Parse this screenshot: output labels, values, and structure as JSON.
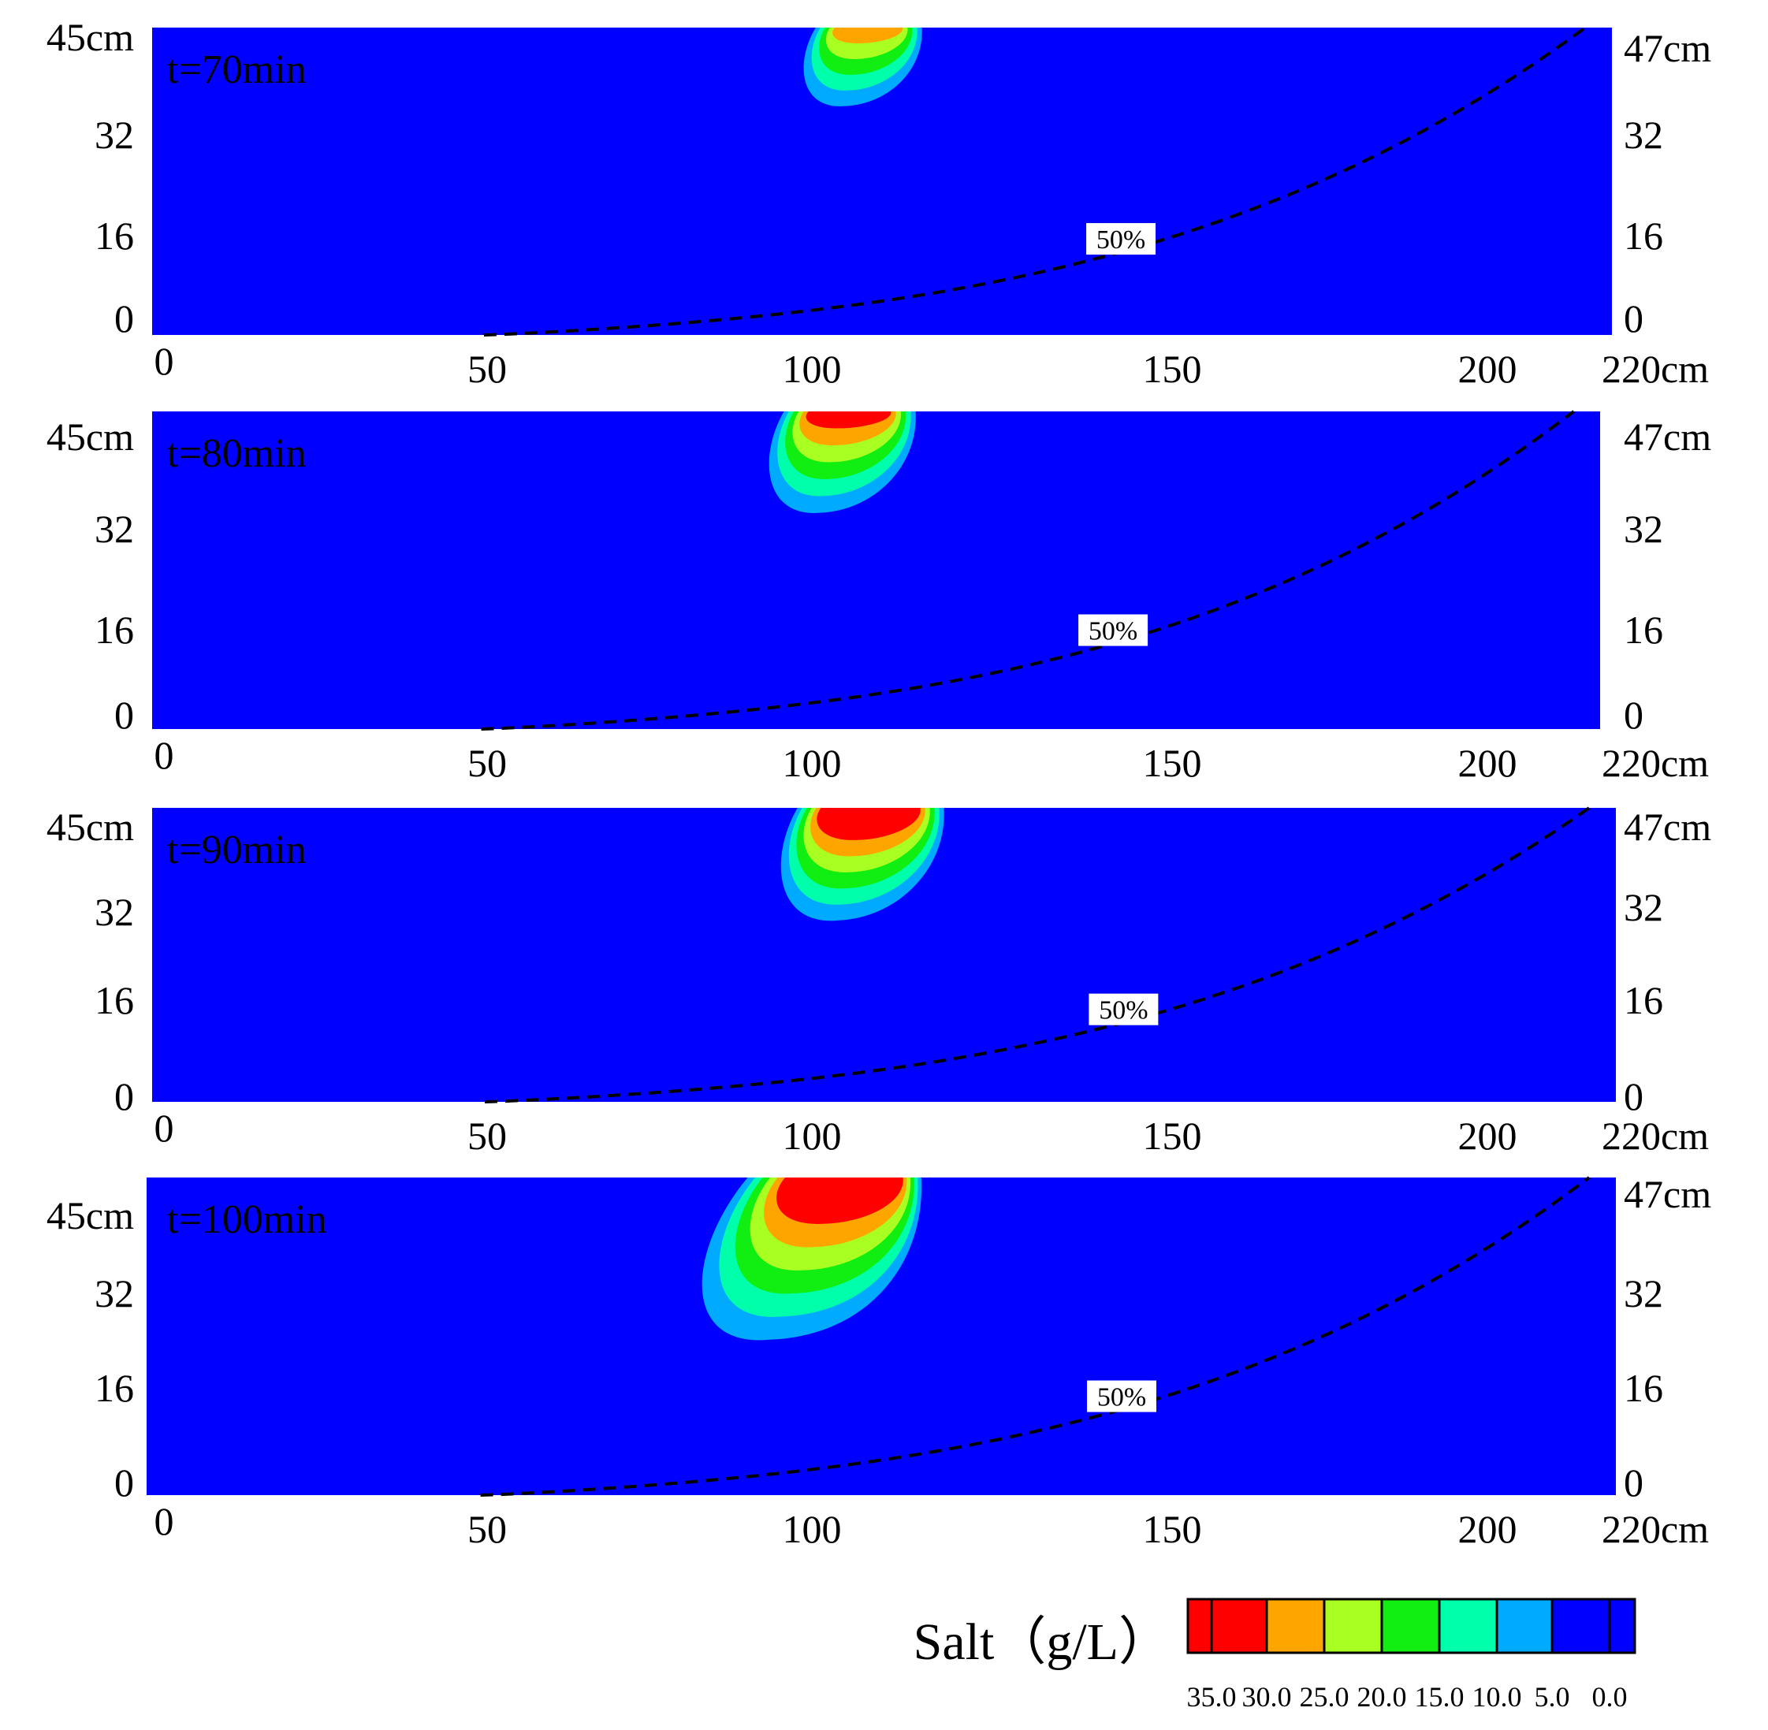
{
  "chart_data": {
    "type": "heatmap",
    "description_scalar": "Salt (g/L)",
    "panels": [
      {
        "time_label": "t=70min",
        "y_left_ticks": [
          "45cm",
          "32",
          "16",
          "0"
        ],
        "y_right_ticks": [
          "47cm",
          "32",
          "16",
          "0"
        ],
        "x_ticks": [
          "0",
          "50",
          "100",
          "150",
          "200",
          "220cm"
        ],
        "contour_label": "50%",
        "plume": {
          "center_x": 108,
          "top_halfwidth": 8,
          "depth": 12,
          "bands": 5
        }
      },
      {
        "time_label": "t=80min",
        "y_left_ticks": [
          "45cm",
          "32",
          "16",
          "0"
        ],
        "y_right_ticks": [
          "47cm",
          "32",
          "16",
          "0"
        ],
        "x_ticks": [
          "0",
          "50",
          "100",
          "150",
          "200",
          "220cm"
        ],
        "contour_label": "50%",
        "plume": {
          "center_x": 106,
          "top_halfwidth": 10,
          "depth": 15,
          "bands": 6
        }
      },
      {
        "time_label": "t=90min",
        "y_left_ticks": [
          "45cm",
          "32",
          "16",
          "0"
        ],
        "y_right_ticks": [
          "47cm",
          "32",
          "16",
          "0"
        ],
        "x_ticks": [
          "0",
          "50",
          "100",
          "150",
          "200",
          "220cm"
        ],
        "contour_label": "50%",
        "plume": {
          "center_x": 108,
          "top_halfwidth": 11,
          "depth": 18,
          "bands": 7
        }
      },
      {
        "time_label": "t=100min",
        "y_left_ticks": [
          "45cm",
          "32",
          "16",
          "0"
        ],
        "y_right_ticks": [
          "47cm",
          "32",
          "16",
          "0"
        ],
        "x_ticks": [
          "0",
          "50",
          "100",
          "150",
          "200",
          "220cm"
        ],
        "contour_label": "50%",
        "plume": {
          "center_x": 103,
          "top_halfwidth": 13,
          "depth": 24,
          "bands": 7
        }
      }
    ],
    "colorbar": {
      "label": "Salt（g/L）",
      "colors": [
        "#ff0000",
        "#ff0000",
        "#ffa500",
        "#aaff22",
        "#11ee11",
        "#00ffaa",
        "#00aaff",
        "#0000ff",
        "#0000ff"
      ],
      "tick_labels": [
        "35.0",
        "30.0",
        "25.0",
        "20.0",
        "15.0",
        "10.0",
        "5.0",
        "0.0"
      ]
    },
    "x_range": [
      0,
      220
    ],
    "y_range": [
      0,
      47
    ],
    "background_color": "#0000ff"
  }
}
